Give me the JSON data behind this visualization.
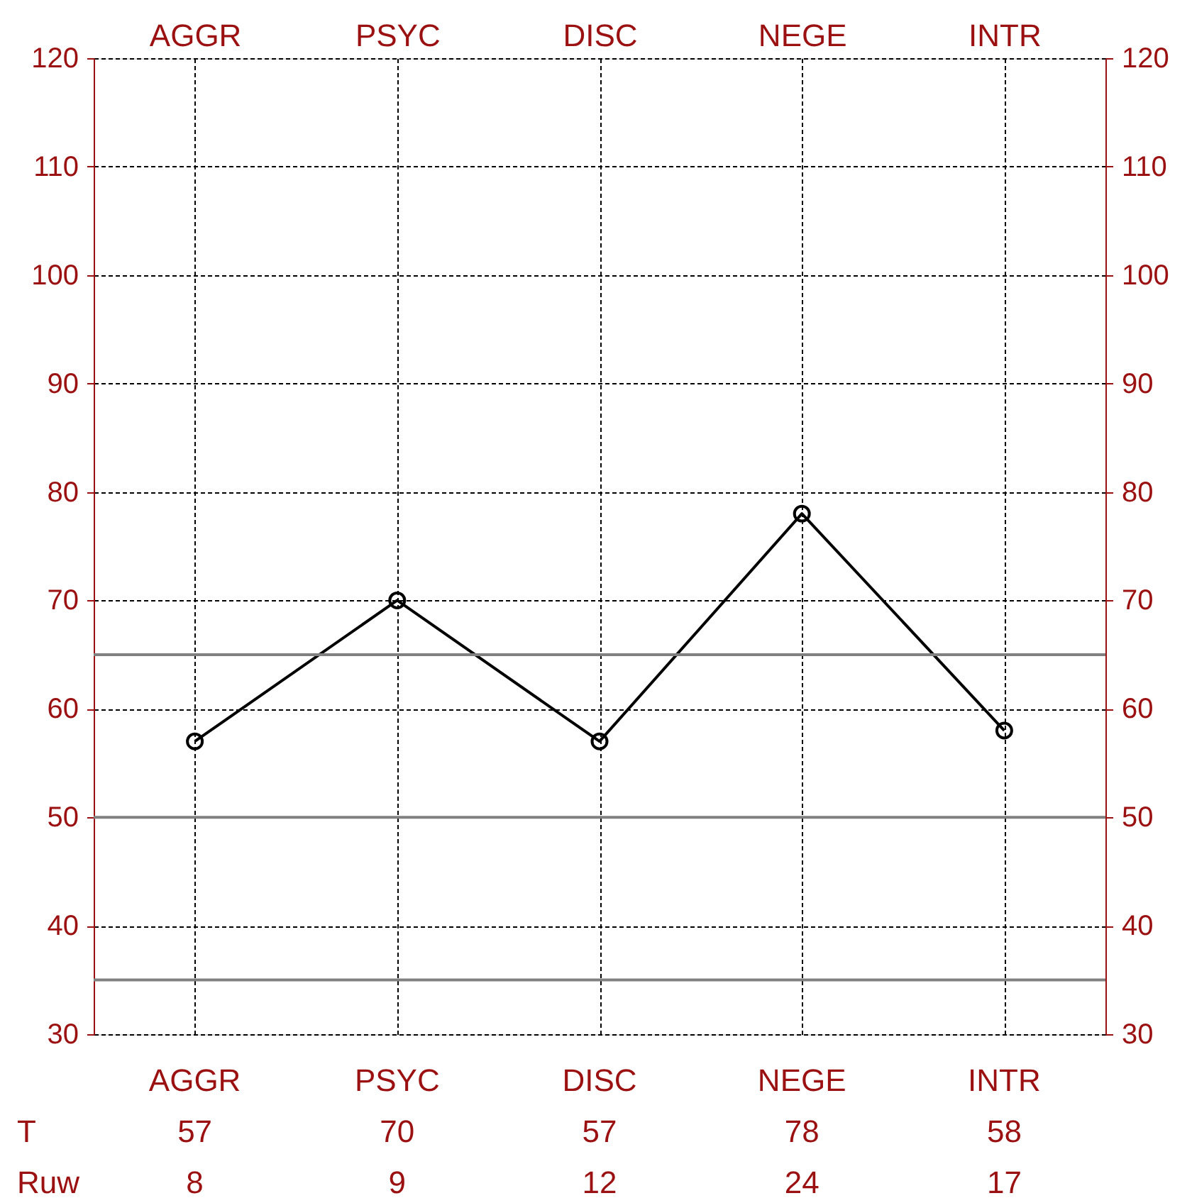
{
  "chart_data": {
    "type": "line",
    "categories": [
      "AGGR",
      "PSYC",
      "DISC",
      "NEGE",
      "INTR"
    ],
    "series": [
      {
        "color": "#000000",
        "values": [
          57,
          70,
          57,
          78,
          58
        ]
      }
    ],
    "ylim": [
      30,
      120
    ],
    "yticks": [
      30,
      40,
      50,
      60,
      70,
      80,
      90,
      100,
      110,
      120
    ],
    "y2lim": [
      30,
      120
    ],
    "y2ticks": [
      30,
      40,
      50,
      60,
      70,
      80,
      90,
      100,
      110,
      120
    ],
    "grid": true,
    "marker": "circle",
    "line_style": "solid",
    "data_labels": true,
    "ref_lines": [
      {
        "axis": "y",
        "value": 35,
        "color": "#808080"
      },
      {
        "axis": "y",
        "value": 50,
        "color": "#808080"
      },
      {
        "axis": "y",
        "value": 65,
        "color": "#808080"
      }
    ],
    "annotations": [
      "T",
      "Ruw",
      "8",
      "9",
      "12",
      "24",
      "17"
    ]
  }
}
